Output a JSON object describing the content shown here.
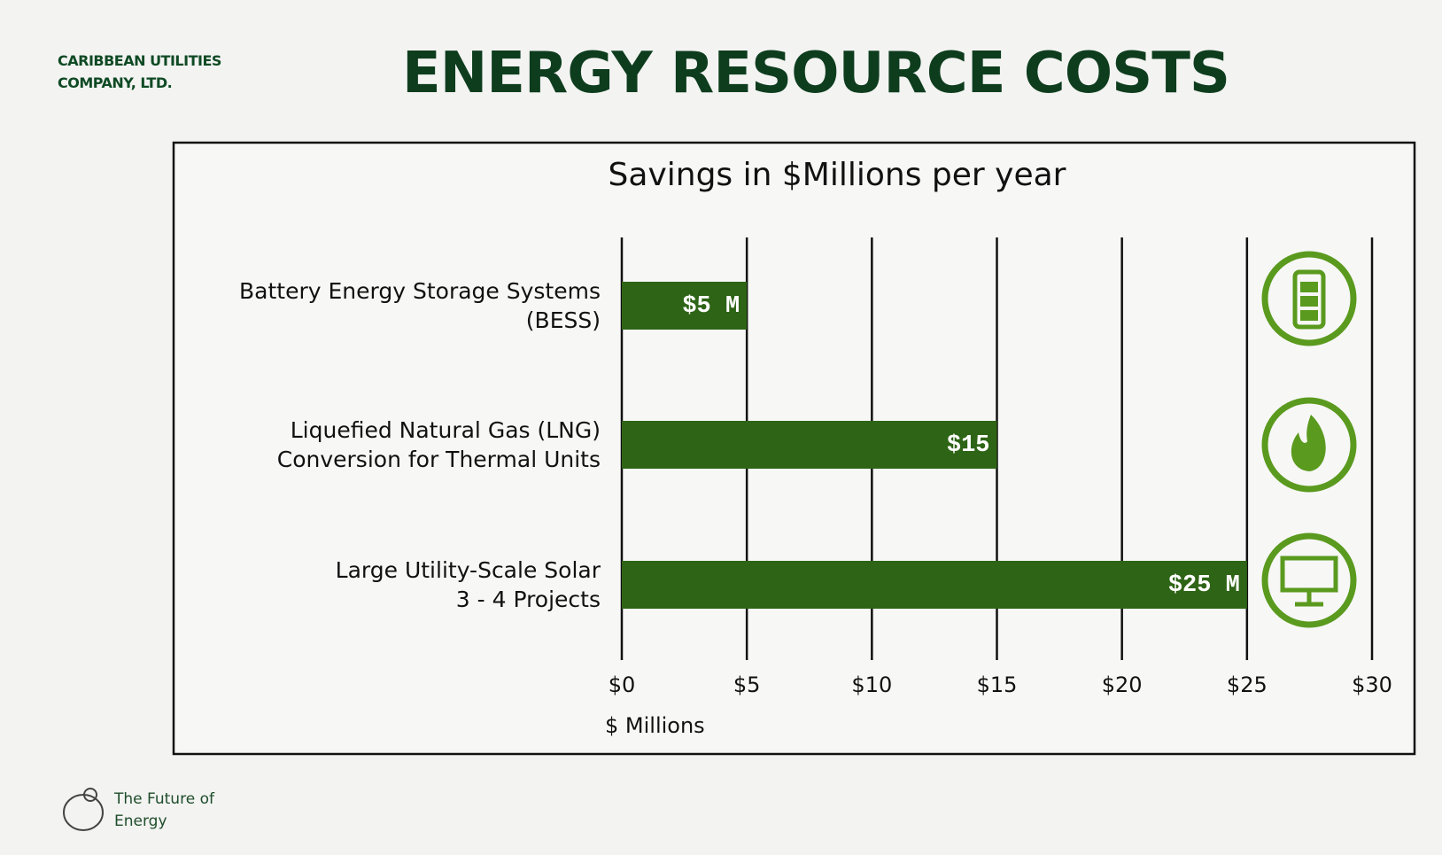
{
  "header": {
    "company": "CARIBBEAN UTILITIES COMPANY, LTD.",
    "title": "ENERGY RESOURCE COSTS"
  },
  "chart_data": {
    "type": "bar",
    "orientation": "horizontal",
    "title": "Savings in $Millions per year",
    "categories": [
      "Battery Energy Storage Systems\n(BESS)",
      "Liquefied Natural Gas (LNG)\nConversion for Thermal Units",
      "Large Utility-Scale Solar\n3 - 4 Projects"
    ],
    "values": [
      5,
      15,
      25
    ],
    "value_labels": [
      "$5 M",
      "$15",
      "$25 M"
    ],
    "color": "#2e6416",
    "xlim": [
      0,
      30
    ],
    "xticks": [
      {
        "value": 0,
        "label": "$0"
      },
      {
        "value": 5,
        "label": "$5"
      },
      {
        "value": 10,
        "label": "$10"
      },
      {
        "value": 15,
        "label": "$15"
      },
      {
        "value": 20,
        "label": "$20"
      },
      {
        "value": 25,
        "label": "$25"
      },
      {
        "value": 30,
        "label": "$30"
      }
    ],
    "xlabel": "$ Millions",
    "grid": true
  },
  "footer": {
    "tagline": "The Future of Energy"
  }
}
